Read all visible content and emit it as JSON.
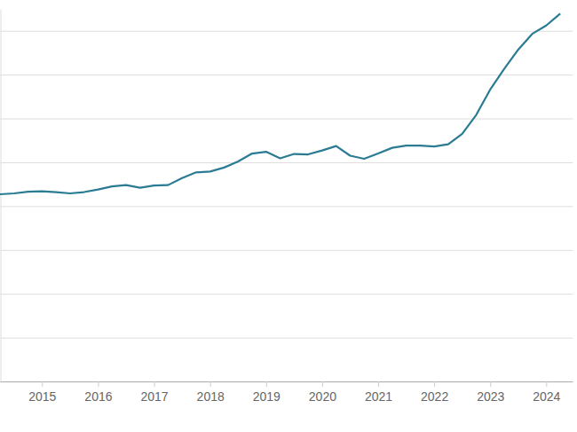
{
  "chart_data": {
    "type": "line",
    "x": [
      2014.25,
      2014.5,
      2014.75,
      2015,
      2015.25,
      2015.5,
      2015.75,
      2016,
      2016.25,
      2016.5,
      2016.75,
      2017,
      2017.25,
      2017.5,
      2017.75,
      2018,
      2018.25,
      2018.5,
      2018.75,
      2019,
      2019.25,
      2019.5,
      2019.75,
      2020,
      2020.25,
      2020.5,
      2020.75,
      2021,
      2021.25,
      2021.5,
      2021.75,
      2022,
      2022.25,
      2022.5,
      2022.75,
      2023,
      2023.25,
      2023.5,
      2023.75,
      2024,
      2024.25
    ],
    "values": [
      4.27,
      4.29,
      4.33,
      4.34,
      4.32,
      4.29,
      4.32,
      4.38,
      4.45,
      4.48,
      4.42,
      4.47,
      4.48,
      4.64,
      4.77,
      4.79,
      4.88,
      5.02,
      5.2,
      5.24,
      5.09,
      5.19,
      5.18,
      5.27,
      5.37,
      5.15,
      5.08,
      5.2,
      5.33,
      5.38,
      5.38,
      5.36,
      5.41,
      5.65,
      6.08,
      6.66,
      7.13,
      7.57,
      7.93,
      8.12,
      8.39
    ],
    "color": "#2a7b93",
    "xlim": [
      2014.25,
      2024.47
    ],
    "xticks": [
      2015,
      2016,
      2017,
      2018,
      2019,
      2020,
      2021,
      2022,
      2023,
      2024
    ],
    "ylim": [
      0,
      8.5
    ],
    "yticks": [
      0,
      1,
      2,
      3,
      4,
      5,
      6,
      7,
      8
    ],
    "grid": true,
    "tick_labels": "x"
  }
}
